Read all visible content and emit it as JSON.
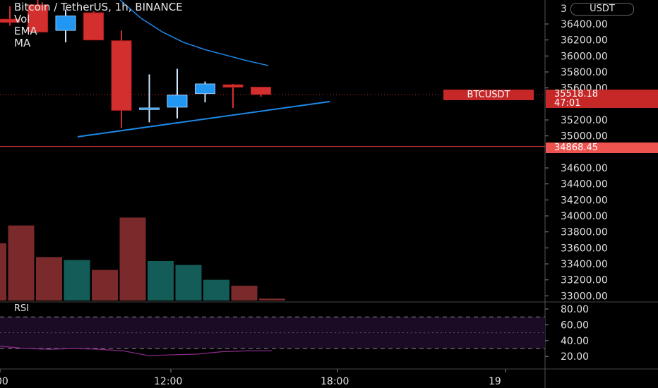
{
  "header": {
    "title": "Bitcoin / TetherUS, 1h, BINANCE",
    "indicators": [
      "Vol",
      "EMA",
      "MA"
    ]
  },
  "currency_button": "USDT",
  "price_axis_labels": [
    "36400.00",
    "36200.00",
    "36000.00",
    "35800.00",
    "35600.00",
    "35200.00",
    "35000.00",
    "34600.00",
    "34400.00",
    "34200.00",
    "34000.00",
    "33800.00",
    "33600.00",
    "33400.00",
    "33200.00",
    "33000.00"
  ],
  "price_axis_top_partial": "3",
  "rsi": {
    "label": "RSI",
    "axis_labels": [
      "80.00",
      "60.00",
      "40.00",
      "20.00"
    ]
  },
  "time_axis_labels": [
    "00",
    "12:00",
    "18:00",
    "19"
  ],
  "symbol_tag": "BTCUSDT",
  "last_price_tag": {
    "price": "35518.18",
    "countdown": "47:01"
  },
  "line_price_tag": "34868.45",
  "colors": {
    "bull": "#2196f3",
    "bear": "#d32f2f",
    "vol_bull": "#145c57",
    "vol_bear": "#7a2a2a",
    "rsi_band": "#1b0b25",
    "rsi_line": "#8e2a8e",
    "trend": "#1e88e5",
    "hline": "#e53935"
  },
  "chart_data": {
    "type": "candlestick",
    "title": "Bitcoin / TetherUS, 1h, BINANCE",
    "y_range": [
      32950,
      36600
    ],
    "candles": [
      {
        "open": 36460,
        "high": 36620,
        "low": 36380,
        "close": 36420
      },
      {
        "open": 36640,
        "high": 36700,
        "low": 36290,
        "close": 36300
      },
      {
        "open": 36320,
        "high": 36580,
        "low": 36170,
        "close": 36500
      },
      {
        "open": 36540,
        "high": 36560,
        "low": 36200,
        "close": 36200
      },
      {
        "open": 36190,
        "high": 36320,
        "low": 35100,
        "close": 35320
      },
      {
        "open": 35330,
        "high": 35770,
        "low": 35170,
        "close": 35350
      },
      {
        "open": 35360,
        "high": 35840,
        "low": 35220,
        "close": 35510
      },
      {
        "open": 35530,
        "high": 35680,
        "low": 35420,
        "close": 35650
      },
      {
        "open": 35640,
        "high": 35650,
        "low": 35350,
        "close": 35610
      },
      {
        "open": 35610,
        "high": 35610,
        "low": 35490,
        "close": 35518.18
      }
    ],
    "volume": [
      {
        "value": 0.58,
        "dir": "down"
      },
      {
        "value": 0.76,
        "dir": "down"
      },
      {
        "value": 0.44,
        "dir": "down"
      },
      {
        "value": 0.41,
        "dir": "up"
      },
      {
        "value": 0.31,
        "dir": "down"
      },
      {
        "value": 0.84,
        "dir": "down"
      },
      {
        "value": 0.4,
        "dir": "up"
      },
      {
        "value": 0.36,
        "dir": "up"
      },
      {
        "value": 0.21,
        "dir": "up"
      },
      {
        "value": 0.15,
        "dir": "down"
      },
      {
        "value": 0.02,
        "dir": "down"
      }
    ],
    "ema": [
      36700,
      36470,
      36300,
      36170,
      36080,
      36010,
      35940,
      35880
    ],
    "trendline": {
      "from": 34990,
      "to": 35430
    },
    "horizontal_line": 34868.45,
    "rsi_values": [
      33,
      30,
      29,
      30,
      29,
      27,
      21,
      22,
      23,
      26,
      27,
      27
    ]
  }
}
